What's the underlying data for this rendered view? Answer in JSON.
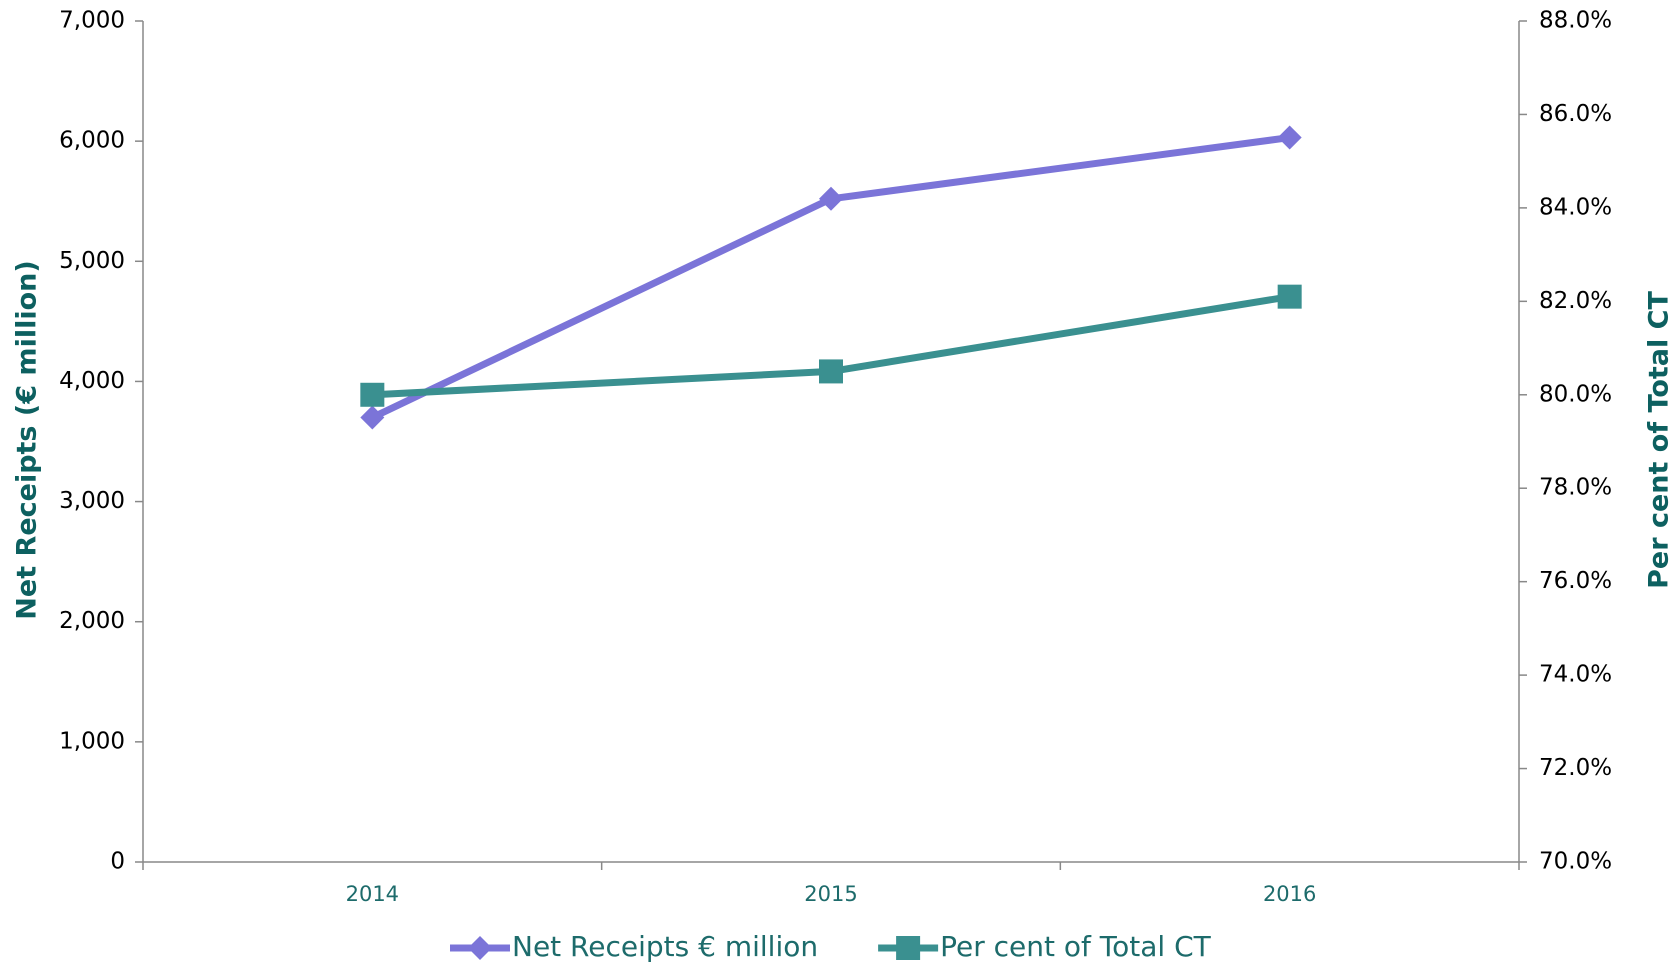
{
  "chart_data": {
    "type": "line",
    "categories": [
      "2014",
      "2015",
      "2016"
    ],
    "series": [
      {
        "name": "Net Receipts € million",
        "color": "#7b74d8",
        "marker": "diamond",
        "values": [
          3700,
          5520,
          6030
        ]
      },
      {
        "name": "Per cent of Total CT",
        "color": "#3a9090",
        "marker": "square",
        "axis": "y2",
        "values": [
          80.0,
          80.5,
          82.1
        ]
      }
    ],
    "ylabel": "Net Receipts (€ million)",
    "y2label": "Per cent of Total CT",
    "ylim": [
      0,
      7000
    ],
    "yticks": [
      0,
      {
        "value": 1000,
        "label": "1,000"
      },
      {
        "value": 2000,
        "label": "2,000"
      },
      {
        "value": 3000,
        "label": "3,000"
      },
      {
        "value": 4000,
        "label": "4,000"
      },
      {
        "value": 5000,
        "label": "5,000"
      },
      {
        "value": 6000,
        "label": "6,000"
      },
      {
        "value": 7000,
        "label": "7,000"
      }
    ],
    "y2lim": [
      70,
      88
    ],
    "y2ticks": [
      {
        "value": 70,
        "label": "70.0%"
      },
      {
        "value": 72,
        "label": "72.0%"
      },
      {
        "value": 74,
        "label": "74.0%"
      },
      {
        "value": 76,
        "label": "76.0%"
      },
      {
        "value": 78,
        "label": "78.0%"
      },
      {
        "value": 80,
        "label": "80.0%"
      },
      {
        "value": 82,
        "label": "82.0%"
      },
      {
        "value": 84,
        "label": "84.0%"
      },
      {
        "value": 86,
        "label": "86.0%"
      },
      {
        "value": 88,
        "label": "88.0%"
      }
    ],
    "grid": false,
    "legend": "bottom"
  }
}
